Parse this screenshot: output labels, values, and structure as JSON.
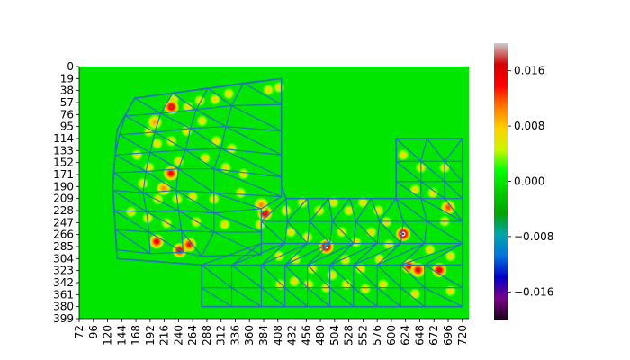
{
  "chart_data": {
    "type": "heatmap",
    "title": "",
    "xlabel": "",
    "ylabel": "",
    "x_ticks": [
      72,
      96,
      120,
      144,
      168,
      192,
      216,
      240,
      264,
      288,
      312,
      336,
      360,
      384,
      408,
      432,
      456,
      480,
      504,
      528,
      552,
      576,
      600,
      624,
      648,
      672,
      696,
      720
    ],
    "y_ticks": [
      0,
      19,
      38,
      57,
      76,
      95,
      114,
      133,
      152,
      171,
      190,
      209,
      228,
      247,
      266,
      285,
      304,
      323,
      342,
      361,
      380,
      399
    ],
    "xlim": [
      72,
      731
    ],
    "ylim": [
      399,
      0
    ],
    "grid": false,
    "background_value": 0.0,
    "colormap": "nipy_spectral",
    "colorbar": {
      "range": [
        -0.02,
        0.02
      ],
      "ticks": [
        0.016,
        0.008,
        0.0,
        -0.008,
        -0.016
      ],
      "tick_labels": [
        "0.016",
        "0.008",
        "0.000",
        "−0.008",
        "−0.016"
      ],
      "colors": [
        "#1b001b",
        "#7a0089",
        "#0000c8",
        "#0074dd",
        "#00a6aa",
        "#00a300",
        "#00cc00",
        "#00ff00",
        "#ccf500",
        "#ffd000",
        "#ff7a00",
        "#ff0000",
        "#d40000",
        "#cccccc"
      ]
    },
    "mesh_outline": [
      [
        414,
        19
      ],
      [
        166,
        50
      ],
      [
        136,
        100
      ],
      [
        129,
        190
      ],
      [
        136,
        304
      ],
      [
        279,
        314
      ],
      [
        279,
        380
      ],
      [
        720,
        380
      ],
      [
        720,
        114
      ],
      [
        608,
        114
      ],
      [
        608,
        209
      ],
      [
        422,
        209
      ],
      [
        414,
        190
      ]
    ],
    "mesh_color": "#1f77b4",
    "peaks": [
      {
        "x": 228,
        "y": 64,
        "value": 0.018
      },
      {
        "x": 227,
        "y": 169,
        "value": 0.016
      },
      {
        "x": 386,
        "y": 232,
        "value": 0.018
      },
      {
        "x": 490,
        "y": 285,
        "value": 0.02
      },
      {
        "x": 620,
        "y": 265,
        "value": 0.02
      },
      {
        "x": 203,
        "y": 277,
        "value": 0.016
      },
      {
        "x": 242,
        "y": 291,
        "value": 0.017
      },
      {
        "x": 258,
        "y": 282,
        "value": 0.015
      },
      {
        "x": 630,
        "y": 316,
        "value": 0.016
      },
      {
        "x": 645,
        "y": 322,
        "value": 0.016
      },
      {
        "x": 681,
        "y": 322,
        "value": 0.017
      },
      {
        "x": 696,
        "y": 223,
        "value": 0.013
      },
      {
        "x": 215,
        "y": 193,
        "value": 0.011
      },
      {
        "x": 200,
        "y": 88,
        "value": 0.01
      },
      {
        "x": 380,
        "y": 219,
        "value": 0.011
      }
    ],
    "mid_points": [
      [
        232,
        52
      ],
      [
        256,
        64
      ],
      [
        276,
        54
      ],
      [
        302,
        52
      ],
      [
        325,
        43
      ],
      [
        392,
        37
      ],
      [
        410,
        33
      ],
      [
        190,
        103
      ],
      [
        204,
        122
      ],
      [
        228,
        118
      ],
      [
        254,
        102
      ],
      [
        280,
        86
      ],
      [
        304,
        118
      ],
      [
        330,
        130
      ],
      [
        170,
        140
      ],
      [
        190,
        160
      ],
      [
        240,
        150
      ],
      [
        285,
        145
      ],
      [
        320,
        160
      ],
      [
        350,
        170
      ],
      [
        180,
        185
      ],
      [
        205,
        210
      ],
      [
        238,
        210
      ],
      [
        264,
        206
      ],
      [
        300,
        210
      ],
      [
        345,
        200
      ],
      [
        160,
        230
      ],
      [
        188,
        240
      ],
      [
        220,
        248
      ],
      [
        270,
        246
      ],
      [
        318,
        250
      ],
      [
        378,
        250
      ],
      [
        422,
        228
      ],
      [
        450,
        215
      ],
      [
        478,
        228
      ],
      [
        502,
        215
      ],
      [
        528,
        228
      ],
      [
        552,
        215
      ],
      [
        578,
        228
      ],
      [
        592,
        246
      ],
      [
        430,
        262
      ],
      [
        458,
        270
      ],
      [
        516,
        262
      ],
      [
        540,
        278
      ],
      [
        566,
        262
      ],
      [
        596,
        282
      ],
      [
        410,
        300
      ],
      [
        438,
        305
      ],
      [
        466,
        320
      ],
      [
        500,
        330
      ],
      [
        522,
        306
      ],
      [
        548,
        320
      ],
      [
        580,
        305
      ],
      [
        412,
        345
      ],
      [
        436,
        340
      ],
      [
        460,
        345
      ],
      [
        490,
        350
      ],
      [
        524,
        345
      ],
      [
        556,
        352
      ],
      [
        586,
        345
      ],
      [
        620,
        140
      ],
      [
        650,
        160
      ],
      [
        690,
        160
      ],
      [
        640,
        195
      ],
      [
        670,
        200
      ],
      [
        690,
        245
      ],
      [
        700,
        300
      ],
      [
        665,
        290
      ],
      [
        640,
        360
      ],
      [
        700,
        355
      ]
    ]
  }
}
